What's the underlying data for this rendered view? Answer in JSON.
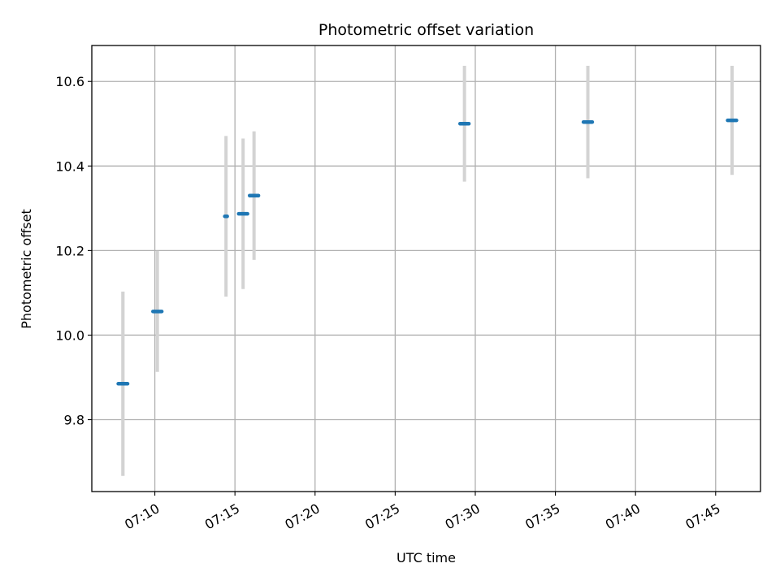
{
  "chart_data": {
    "type": "scatter",
    "title": "Photometric offset variation",
    "xlabel": "UTC time",
    "ylabel": "Photometric offset",
    "x_axis_kind": "time",
    "xlim": [
      "07:06:04",
      "07:47:48"
    ],
    "ylim": [
      9.63,
      10.685
    ],
    "x_ticks": [
      "07:10",
      "07:15",
      "07:20",
      "07:25",
      "07:30",
      "07:35",
      "07:40",
      "07:45"
    ],
    "y_ticks": [
      9.8,
      10.0,
      10.2,
      10.4,
      10.6
    ],
    "y_tick_labels": [
      "9.8",
      "10.0",
      "10.2",
      "10.4",
      "10.6"
    ],
    "grid": true,
    "legend": "none",
    "series": [
      {
        "marker_color": "#1f77b4",
        "errorbar_color": "#d3d3d3",
        "points": [
          {
            "t_start": "07:07:43",
            "t_end": "07:08:18",
            "y": 9.885,
            "err": 0.218
          },
          {
            "t_start": "07:09:53",
            "t_end": "07:10:26",
            "y": 10.056,
            "err": 0.143
          },
          {
            "t_start": "07:14:22",
            "t_end": "07:14:31",
            "y": 10.281,
            "err": 0.19
          },
          {
            "t_start": "07:15:14",
            "t_end": "07:15:47",
            "y": 10.287,
            "err": 0.178
          },
          {
            "t_start": "07:15:55",
            "t_end": "07:16:28",
            "y": 10.33,
            "err": 0.152
          },
          {
            "t_start": "07:29:03",
            "t_end": "07:29:36",
            "y": 10.5,
            "err": 0.137
          },
          {
            "t_start": "07:36:45",
            "t_end": "07:37:18",
            "y": 10.504,
            "err": 0.133
          },
          {
            "t_start": "07:45:45",
            "t_end": "07:46:18",
            "y": 10.508,
            "err": 0.129
          }
        ]
      }
    ]
  }
}
